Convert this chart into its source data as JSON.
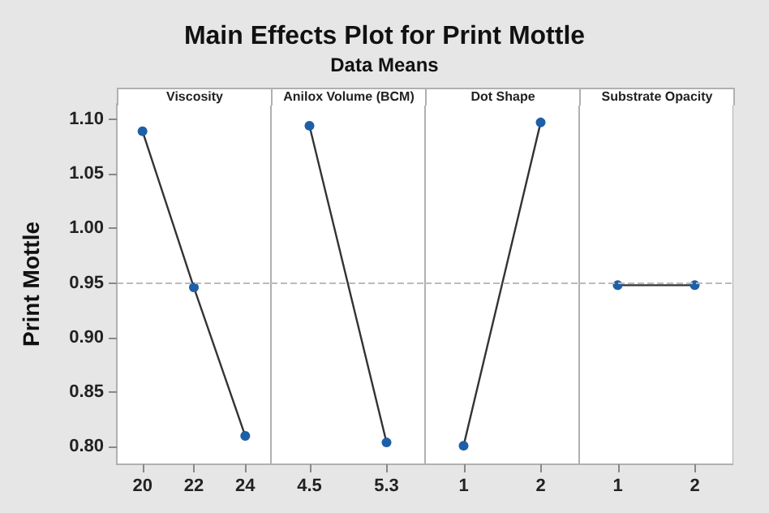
{
  "chart_data": [
    {
      "type": "line",
      "title": "Viscosity",
      "annotations": [
        "Main Effects Plot for Print Mottle",
        "Data Means"
      ],
      "ylabel": "Print Mottle",
      "categories": [
        "20",
        "22",
        "24"
      ],
      "series": [
        {
          "color": "#1f5fa8",
          "values": [
            1.089,
            0.946,
            0.81
          ]
        }
      ],
      "marker": "circle",
      "ylim": [
        0.784,
        1.114
      ],
      "yticks": [
        {
          "value": 0.8,
          "label": "0.80"
        },
        {
          "value": 0.85,
          "label": "0.85"
        },
        {
          "value": 0.9,
          "label": "0.90"
        },
        {
          "value": 0.95,
          "label": "0.95"
        },
        {
          "value": 1.0,
          "label": "1.00"
        },
        {
          "value": 1.05,
          "label": "1.05"
        },
        {
          "value": 1.1,
          "label": "1.10"
        }
      ],
      "ref_lines": [
        {
          "axis": "y",
          "value": 0.948,
          "color": "#bbbbbb",
          "line_style": "dashed"
        }
      ]
    },
    {
      "type": "line",
      "title": "Anilox Volume (BCM)",
      "categories": [
        "4.5",
        "5.3"
      ],
      "series": [
        {
          "color": "#1f5fa8",
          "values": [
            1.094,
            0.804
          ]
        }
      ],
      "marker": "circle",
      "ylim": [
        0.784,
        1.114
      ],
      "tick_labels": "x",
      "ref_lines": [
        {
          "axis": "y",
          "value": 0.948,
          "color": "#bbbbbb",
          "line_style": "dashed"
        }
      ]
    },
    {
      "type": "line",
      "title": "Dot Shape",
      "categories": [
        "1",
        "2"
      ],
      "series": [
        {
          "color": "#1f5fa8",
          "values": [
            0.801,
            1.097
          ]
        }
      ],
      "marker": "circle",
      "ylim": [
        0.784,
        1.114
      ],
      "tick_labels": "x",
      "ref_lines": [
        {
          "axis": "y",
          "value": 0.948,
          "color": "#bbbbbb",
          "line_style": "dashed"
        }
      ]
    },
    {
      "type": "line",
      "title": "Substrate Opacity",
      "categories": [
        "1",
        "2"
      ],
      "series": [
        {
          "color": "#1f5fa8",
          "values": [
            0.948,
            0.948
          ]
        }
      ],
      "marker": "circle",
      "ylim": [
        0.784,
        1.114
      ],
      "tick_labels": "x",
      "ref_lines": [
        {
          "axis": "y",
          "value": 0.948,
          "color": "#bbbbbb",
          "line_style": "dashed"
        }
      ]
    }
  ]
}
